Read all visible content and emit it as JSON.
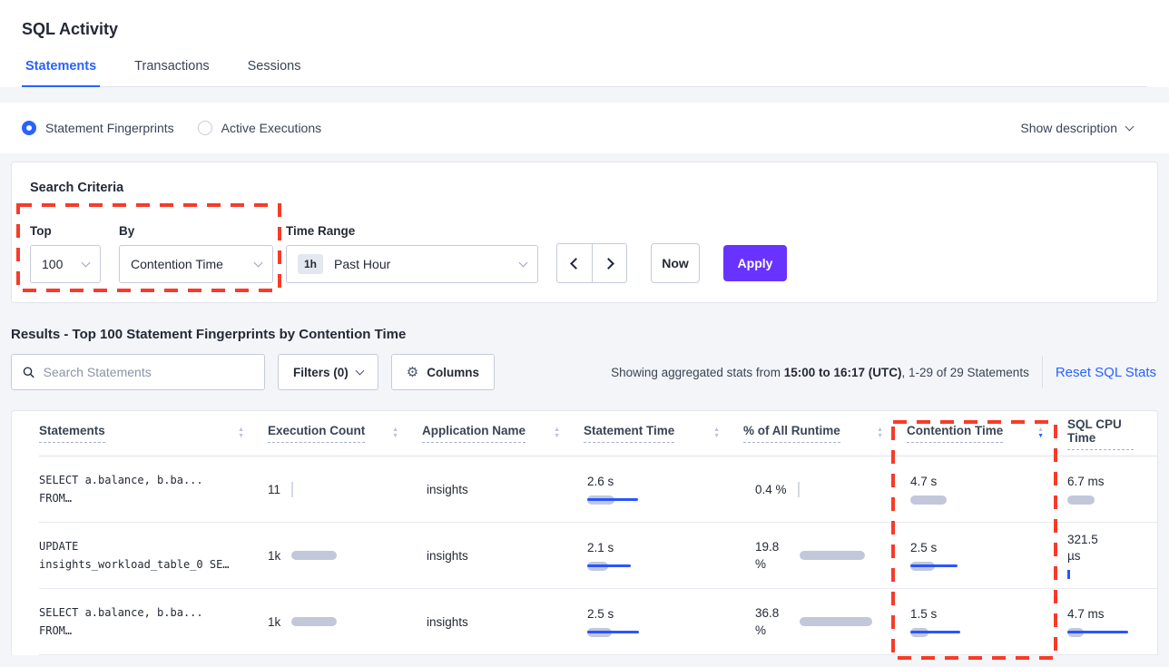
{
  "page": {
    "title": "SQL Activity"
  },
  "tabs": [
    {
      "label": "Statements",
      "active": true
    },
    {
      "label": "Transactions",
      "active": false
    },
    {
      "label": "Sessions",
      "active": false
    }
  ],
  "view_toggle": {
    "options": [
      {
        "label": "Statement Fingerprints",
        "selected": true
      },
      {
        "label": "Active Executions",
        "selected": false
      }
    ],
    "show_description": "Show description"
  },
  "search_criteria": {
    "title": "Search Criteria",
    "top": {
      "label": "Top",
      "value": "100"
    },
    "by": {
      "label": "By",
      "value": "Contention Time"
    },
    "time_range": {
      "label": "Time Range",
      "badge": "1h",
      "value": "Past Hour"
    },
    "now_label": "Now",
    "apply_label": "Apply"
  },
  "results": {
    "title": "Results - Top 100 Statement Fingerprints by Contention Time",
    "search_placeholder": "Search Statements",
    "filters_label": "Filters (0)",
    "columns_label": "Columns",
    "summary_prefix": "Showing aggregated stats from ",
    "summary_bold": "15:00 to 16:17 (UTC)",
    "summary_suffix": ", 1-29 of 29 Statements",
    "reset_label": "Reset SQL Stats"
  },
  "table": {
    "headers": [
      {
        "label": "Statements"
      },
      {
        "label": "Execution Count"
      },
      {
        "label": "Application Name"
      },
      {
        "label": "Statement Time"
      },
      {
        "label": "% of All Runtime"
      },
      {
        "label": "Contention Time",
        "sorted": "desc"
      },
      {
        "label": "SQL CPU Time"
      }
    ],
    "rows": [
      {
        "sql": [
          "SELECT a.balance, b.ba...",
          "FROM…"
        ],
        "exec": "11",
        "app": "insights",
        "stmt_time": "2.6 s",
        "pct": "0.4 %",
        "contention": "4.7 s",
        "cpu": "6.7 ms",
        "bars": {
          "exec": {
            "vtick": "gray"
          },
          "stmt": {
            "gray": 30,
            "blue": 56
          },
          "pct": {
            "vtick": "gray"
          },
          "cont": {
            "gray": 40
          },
          "cpu": {
            "gray": 30
          }
        }
      },
      {
        "sql": [
          "UPDATE",
          "insights_workload_table_0 SE…"
        ],
        "exec": "1k",
        "app": "insights",
        "stmt_time": "2.1 s",
        "pct": "19.8 %",
        "contention": "2.5 s",
        "cpu": "321.5 µs",
        "bars": {
          "exec": {
            "gray": 50
          },
          "stmt": {
            "gray": 23,
            "blue": 48
          },
          "pct": {
            "gray": 72
          },
          "cont": {
            "gray": 27,
            "blue": 52
          },
          "cpu": {
            "vtick": "blue"
          }
        }
      },
      {
        "sql": [
          "SELECT a.balance, b.ba...",
          "FROM…"
        ],
        "exec": "1k",
        "app": "insights",
        "stmt_time": "2.5 s",
        "pct": "36.8 %",
        "contention": "1.5 s",
        "cpu": "4.7 ms",
        "bars": {
          "exec": {
            "gray": 50
          },
          "stmt": {
            "gray": 27,
            "blue": 57
          },
          "pct": {
            "gray": 80
          },
          "cont": {
            "gray": 20,
            "blue": 55
          },
          "cpu": {
            "gray": 18,
            "blue": 67
          }
        }
      }
    ]
  },
  "colors": {
    "accent_blue": "#2962ff",
    "bar_blue": "#2955ff",
    "bar_gray": "#c2c8da",
    "apply_purple": "#6933ff",
    "annotation_red": "#f83b2a"
  }
}
